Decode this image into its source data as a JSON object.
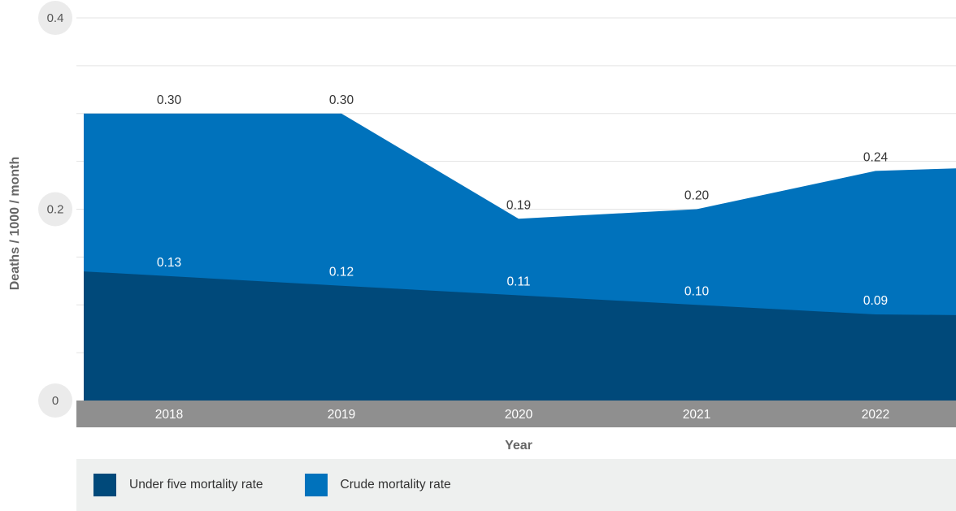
{
  "chart_data": {
    "type": "area",
    "stacked": false,
    "xlabel": "Year",
    "ylabel": "Deaths / 1000 / month",
    "ylim": [
      0,
      0.4
    ],
    "yticks": [
      0,
      0.2,
      0.4
    ],
    "categories": [
      "2018",
      "2019",
      "2020",
      "2021",
      "2022"
    ],
    "grid": true,
    "legend_position": "bottom",
    "series": [
      {
        "name": "Crude mortality rate",
        "color": "#0072bc",
        "values": [
          0.3,
          0.3,
          0.19,
          0.2,
          0.24
        ],
        "labels": [
          "0.30",
          "0.30",
          "0.19",
          "0.20",
          "0.24"
        ]
      },
      {
        "name": "Under five mortality rate",
        "color": "#00497a",
        "values": [
          0.13,
          0.12,
          0.11,
          0.1,
          0.09
        ],
        "labels": [
          "0.13",
          "0.12",
          "0.11",
          "0.10",
          "0.09"
        ]
      }
    ]
  },
  "legend": {
    "items": [
      {
        "label": "Under five mortality rate",
        "color": "#00497a"
      },
      {
        "label": "Crude mortality rate",
        "color": "#0072bc"
      }
    ]
  }
}
